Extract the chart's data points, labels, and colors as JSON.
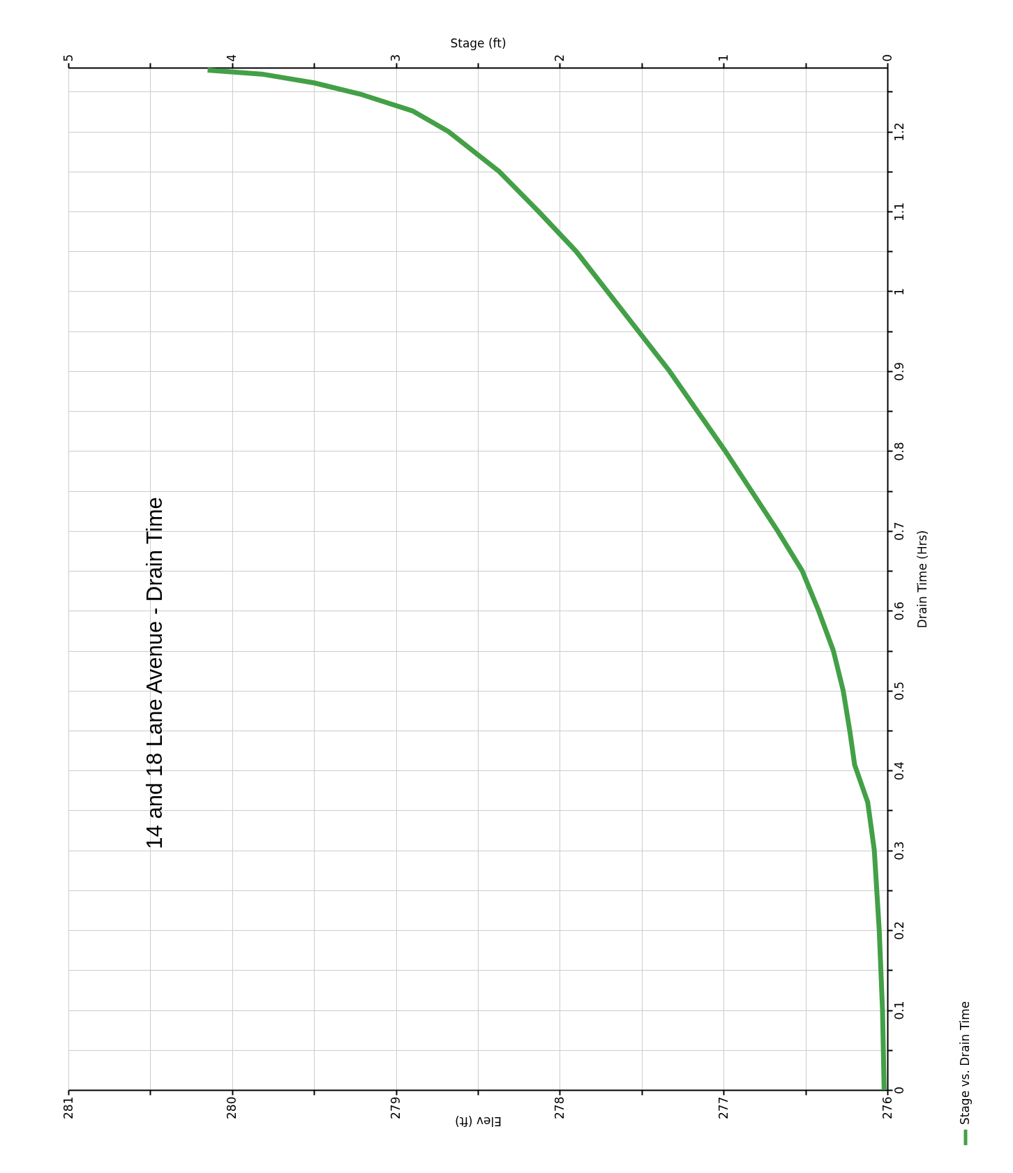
{
  "chart_data": {
    "type": "line",
    "title": "14 and 18 Lane Avenue - Drain Time",
    "xlabel": "Elev (ft)",
    "x2label": "Stage (ft)",
    "ylabel": "Drain Time (Hrs)",
    "series": [
      {
        "name": "Stage vs. Drain Time",
        "color": "#43a047",
        "x": [
          276.02,
          276.03,
          276.05,
          276.08,
          276.12,
          276.2,
          276.23,
          276.27,
          276.33,
          276.42,
          276.52,
          276.67,
          276.83,
          276.99,
          277.16,
          277.33,
          277.52,
          277.71,
          277.9,
          278.13,
          278.37,
          278.68,
          278.9,
          279.22,
          279.5,
          279.82,
          280.15
        ],
        "values": [
          0,
          0.1,
          0.2,
          0.3,
          0.36,
          0.407,
          0.45,
          0.5,
          0.55,
          0.6,
          0.65,
          0.7,
          0.75,
          0.8,
          0.85,
          0.9,
          0.95,
          1.0,
          1.05,
          1.1,
          1.15,
          1.2,
          1.226,
          1.247,
          1.261,
          1.272,
          1.277
        ]
      }
    ],
    "xlim": [
      281,
      276
    ],
    "xticks": [
      281,
      {
        "value": 280.5,
        "label": null
      },
      280,
      {
        "value": 279.5,
        "label": null
      },
      279,
      {
        "value": 278.5,
        "label": null
      },
      278,
      {
        "value": 277.5,
        "label": null
      },
      277,
      {
        "value": 276.5,
        "label": null
      },
      276
    ],
    "x2lim": [
      5,
      0
    ],
    "x2ticks": [
      5,
      {
        "value": 4.5,
        "label": null
      },
      4,
      {
        "value": 3.5,
        "label": null
      },
      3,
      {
        "value": 2.5,
        "label": null
      },
      2,
      {
        "value": 1.5,
        "label": null
      },
      1,
      {
        "value": 0.5,
        "label": null
      },
      0
    ],
    "ylim": [
      0,
      1.28
    ],
    "yticks": [
      0,
      {
        "value": 0.05,
        "label": null
      },
      0.1,
      {
        "value": 0.15,
        "label": null
      },
      0.2,
      {
        "value": 0.25,
        "label": null
      },
      0.3,
      {
        "value": 0.35,
        "label": null
      },
      0.4,
      {
        "value": 0.45,
        "label": null
      },
      0.5,
      {
        "value": 0.55,
        "label": null
      },
      0.6,
      {
        "value": 0.65,
        "label": null
      },
      0.7,
      {
        "value": 0.75,
        "label": null
      },
      0.8,
      {
        "value": 0.85,
        "label": null
      },
      0.9,
      {
        "value": 0.95,
        "label": null
      },
      1,
      {
        "value": 1.05,
        "label": null
      },
      1.1,
      {
        "value": 1.15,
        "label": null
      },
      1.2,
      {
        "value": 1.25,
        "label": null
      }
    ],
    "grid": true,
    "legend": "bottom right",
    "line_style": "solid"
  }
}
